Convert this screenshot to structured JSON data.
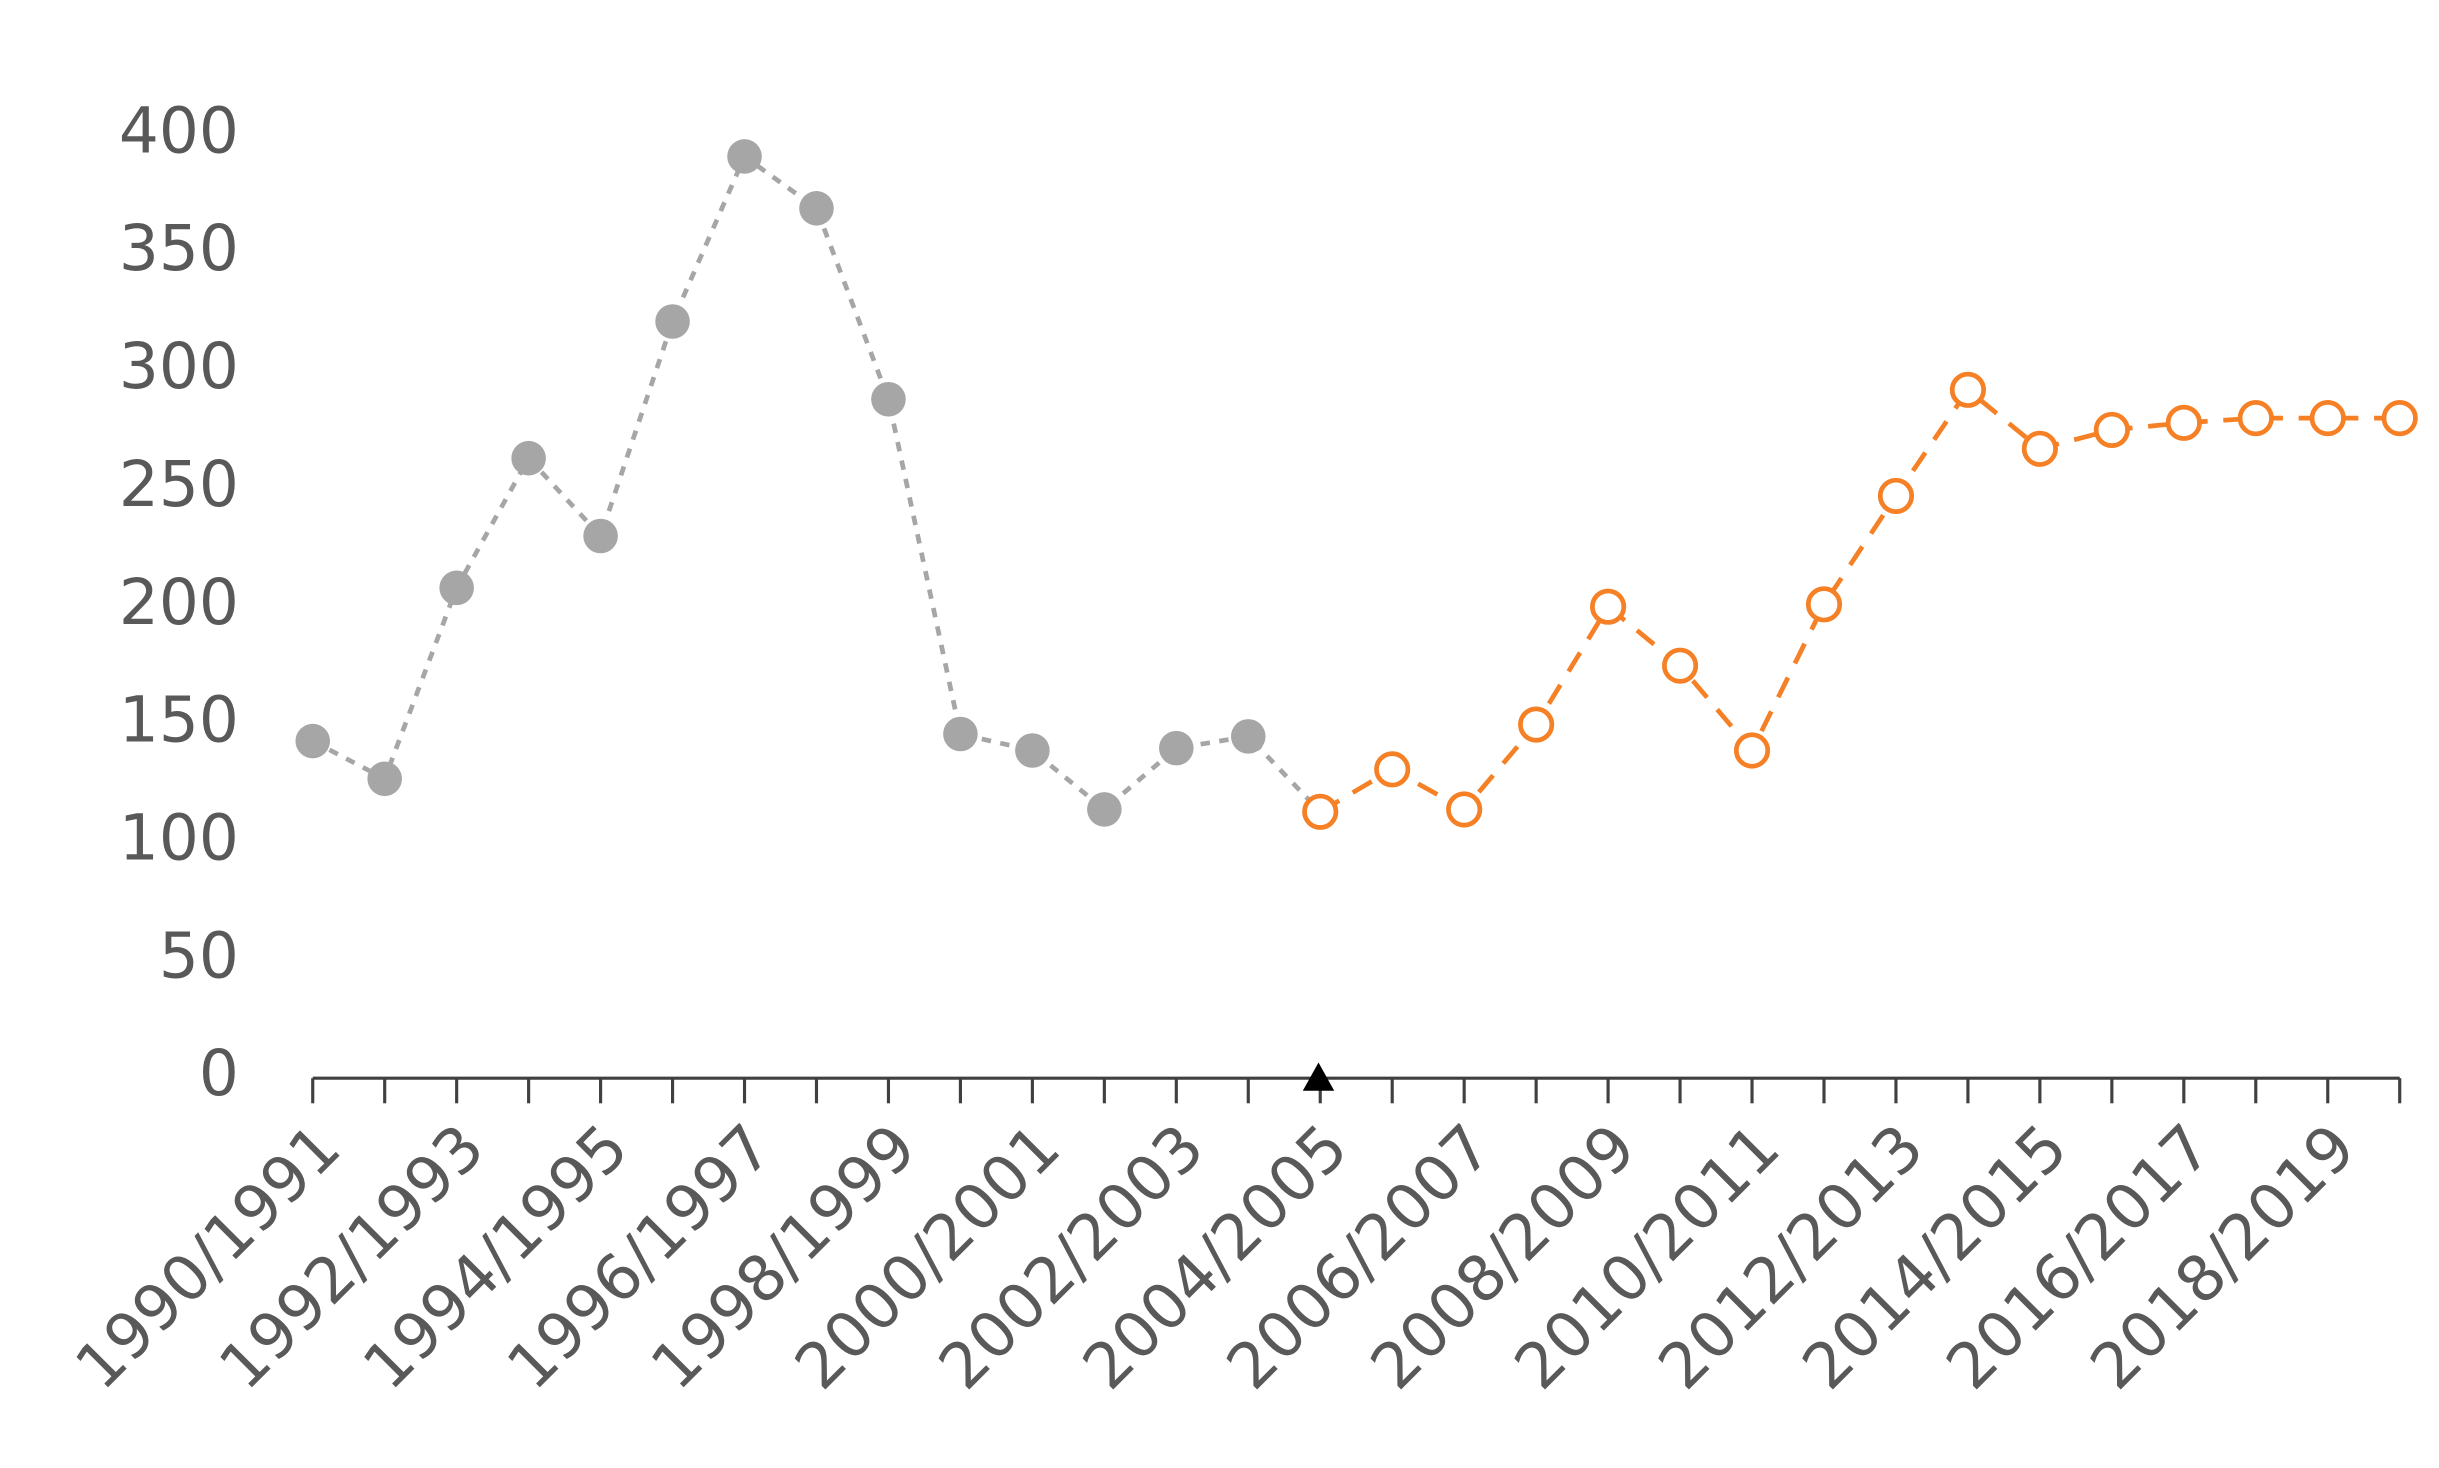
{
  "chart_data": {
    "type": "line",
    "categories": [
      "1990/1991",
      null,
      "1992/1993",
      null,
      "1994/1995",
      null,
      "1996/1997",
      null,
      "1998/1999",
      null,
      "2000/2001",
      null,
      "2002/2003",
      null,
      "2004/2005",
      null,
      "2006/2007",
      null,
      "2008/2009",
      null,
      "2010/2011",
      null,
      "2012/2013",
      null,
      "2014/2015",
      null,
      "2016/2017",
      null,
      "2018/2019",
      null
    ],
    "series": [
      {
        "color": "#a6a6a6",
        "marker": "filled",
        "dash": "short",
        "values": [
          143,
          127,
          208,
          263,
          230,
          321,
          391,
          369,
          288,
          146,
          139,
          114,
          140,
          145,
          113,
          null,
          null,
          null,
          null,
          null,
          null,
          null,
          null,
          null,
          null,
          null,
          null,
          null,
          null,
          null
        ]
      },
      {
        "color": "#f58025",
        "marker": "open",
        "dash": "long",
        "values": [
          null,
          null,
          null,
          null,
          null,
          null,
          null,
          null,
          null,
          null,
          null,
          null,
          null,
          null,
          113,
          131,
          114,
          150,
          200,
          175,
          139,
          201,
          247,
          292,
          267,
          275,
          278,
          280,
          280,
          280
        ]
      }
    ],
    "ylim": [
      0,
      400
    ],
    "yticks": [
      0,
      50,
      100,
      150,
      200,
      250,
      300,
      350,
      400
    ],
    "grid": false
  }
}
